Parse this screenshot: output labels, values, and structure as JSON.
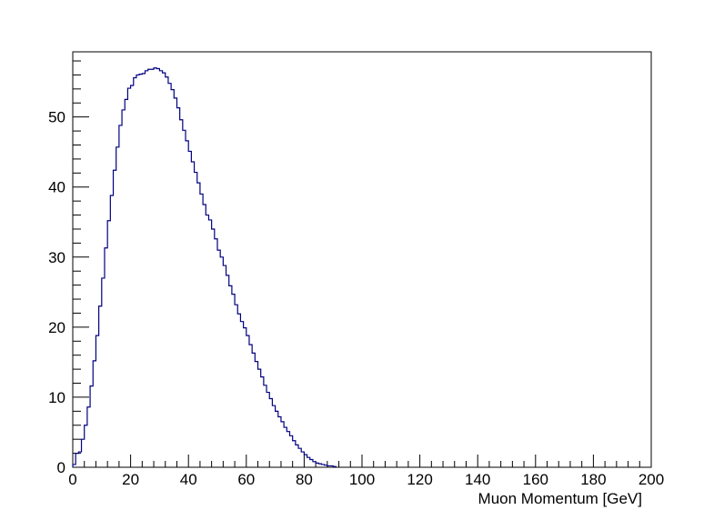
{
  "chart_data": {
    "type": "histogram",
    "title": "",
    "xlabel": "Muon Momentum [GeV]",
    "ylabel": "",
    "xlim": [
      0,
      200
    ],
    "ylim": [
      0,
      59.3
    ],
    "x_ticks": [
      0,
      20,
      40,
      60,
      80,
      100,
      120,
      140,
      160,
      180,
      200
    ],
    "y_ticks": [
      0,
      10,
      20,
      30,
      40,
      50
    ],
    "grid": false,
    "legend": "none",
    "line_color": "#000080",
    "series": [
      {
        "bin_width": 1,
        "x_start": 0,
        "values": [
          0.4,
          2.0,
          2.2,
          4.0,
          6.0,
          8.6,
          11.6,
          15.2,
          18.8,
          23.0,
          27.0,
          31.3,
          35.2,
          38.8,
          42.4,
          45.7,
          48.8,
          51.0,
          52.5,
          54.1,
          54.5,
          55.6,
          56.0,
          56.1,
          56.2,
          56.6,
          56.8,
          56.8,
          57.0,
          56.9,
          56.6,
          56.3,
          55.7,
          54.8,
          53.9,
          52.7,
          51.3,
          49.6,
          48.1,
          46.6,
          45.1,
          43.6,
          42.1,
          40.6,
          39.0,
          37.5,
          36.0,
          35.3,
          34.0,
          32.6,
          31.0,
          30.0,
          28.8,
          27.4,
          25.9,
          24.7,
          23.2,
          21.9,
          20.8,
          19.9,
          18.8,
          17.5,
          16.3,
          15.1,
          14.0,
          12.9,
          11.7,
          10.7,
          9.8,
          8.8,
          8.0,
          7.2,
          6.5,
          5.7,
          5.1,
          4.5,
          3.8,
          3.2,
          2.7,
          2.2,
          1.8,
          1.4,
          1.1,
          0.8,
          0.6,
          0.5,
          0.4,
          0.3,
          0.2,
          0.2,
          0.1
        ]
      }
    ]
  }
}
